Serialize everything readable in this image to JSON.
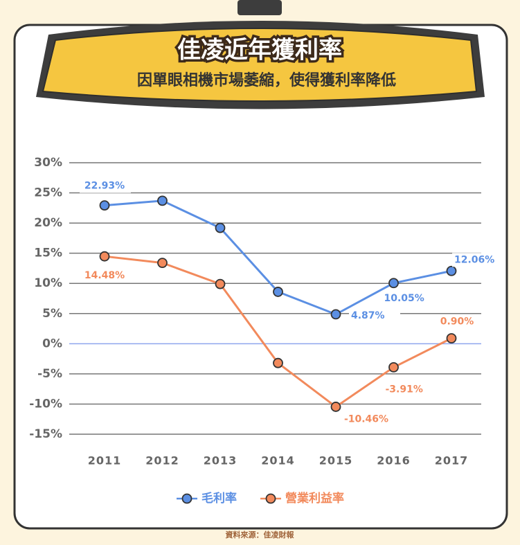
{
  "chart_data": {
    "type": "line",
    "title": "佳凌近年獲利率",
    "subtitle": "因單眼相機市場萎縮，使得獲利率降低",
    "source": "資料來源：佳凌財報",
    "categories": [
      "2011",
      "2012",
      "2013",
      "2014",
      "2015",
      "2016",
      "2017"
    ],
    "series": [
      {
        "name": "毛利率",
        "color": "#5b8fe3",
        "values": [
          22.93,
          23.7,
          19.2,
          8.6,
          4.87,
          10.05,
          12.06
        ],
        "value_labels": [
          "22.93%",
          null,
          null,
          null,
          "4.87%",
          "10.05%",
          "12.06%"
        ]
      },
      {
        "name": "營業利益率",
        "color": "#f28a5c",
        "values": [
          14.48,
          13.4,
          9.9,
          -3.2,
          -10.46,
          -3.91,
          0.9
        ],
        "value_labels": [
          "14.48%",
          null,
          null,
          null,
          "-10.46%",
          "-3.91%",
          "0.90%"
        ]
      }
    ],
    "ylim": [
      -15,
      30
    ],
    "yticks": [
      {
        "value": -15,
        "label": "-15%"
      },
      {
        "value": -10,
        "label": "-10%"
      },
      {
        "value": -5,
        "label": "-5%"
      },
      {
        "value": 0,
        "label": "0%"
      },
      {
        "value": 5,
        "label": "5%"
      },
      {
        "value": 10,
        "label": "10%"
      },
      {
        "value": 15,
        "label": "15%"
      },
      {
        "value": 20,
        "label": "20%"
      },
      {
        "value": 25,
        "label": "25%"
      },
      {
        "value": 30,
        "label": "30%"
      }
    ],
    "grid": true,
    "legend": "bottom"
  }
}
